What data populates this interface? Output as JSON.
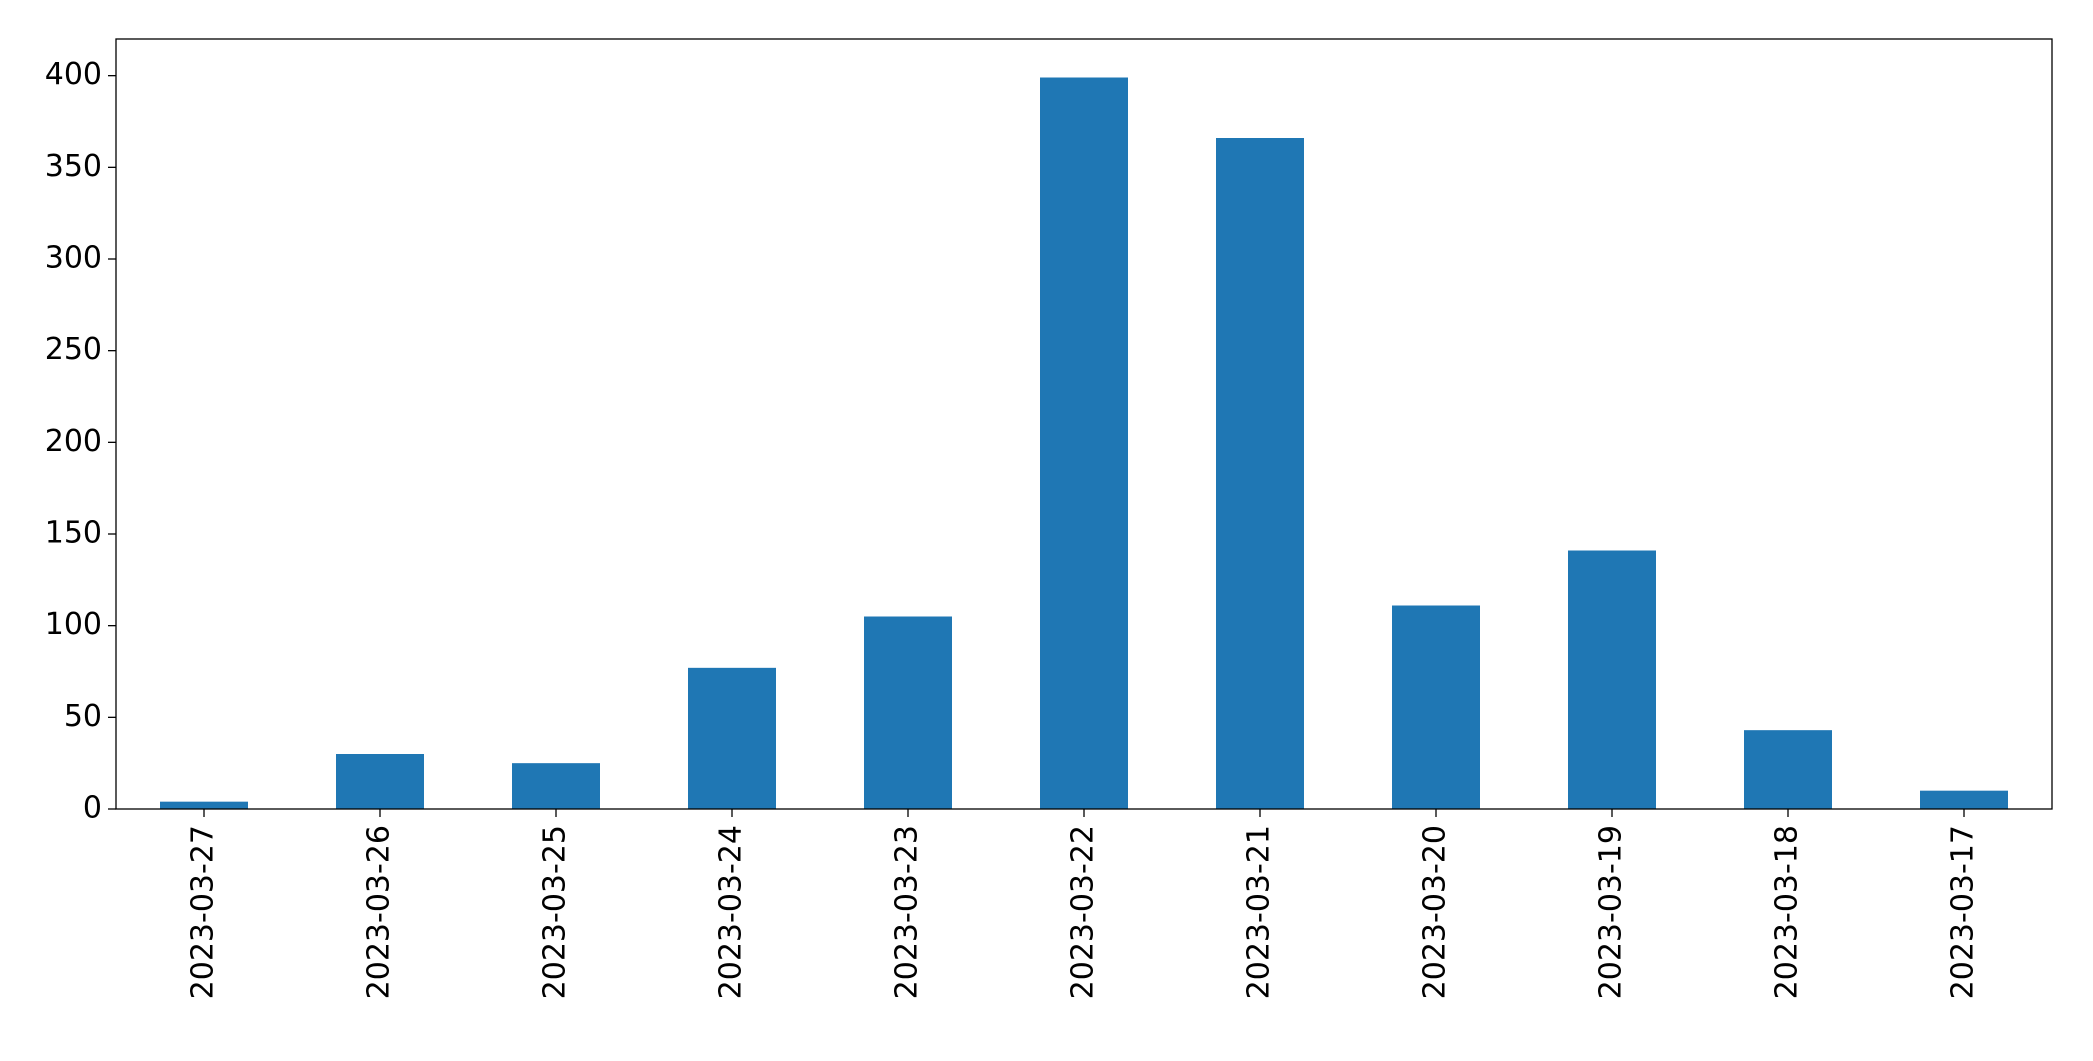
{
  "chart_data": {
    "type": "bar",
    "categories": [
      "2023-03-27",
      "2023-03-26",
      "2023-03-25",
      "2023-03-24",
      "2023-03-23",
      "2023-03-22",
      "2023-03-21",
      "2023-03-20",
      "2023-03-19",
      "2023-03-18",
      "2023-03-17"
    ],
    "values": [
      4,
      30,
      25,
      77,
      105,
      399,
      366,
      111,
      141,
      43,
      10
    ],
    "color": "#1f77b4",
    "ylim": [
      0,
      420
    ],
    "yticks": [
      0,
      50,
      100,
      150,
      200,
      250,
      300,
      350,
      400
    ],
    "grid": false
  }
}
